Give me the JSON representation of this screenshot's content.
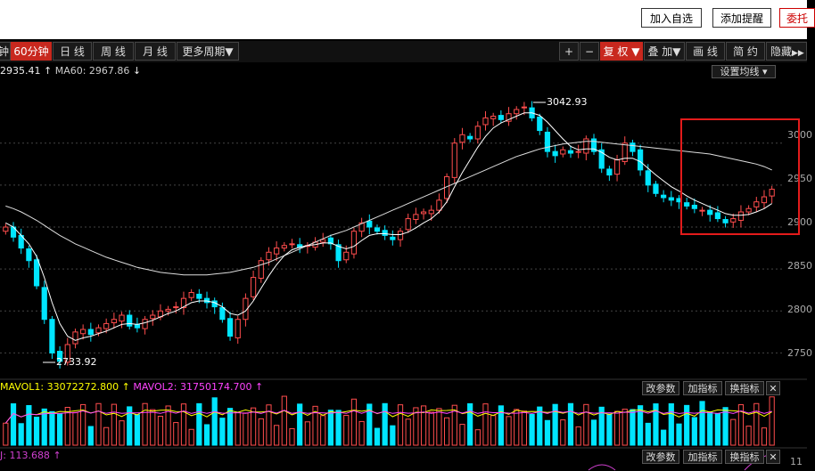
{
  "top_buttons": {
    "add_watch": "加入自选",
    "add_alert": "添加提醒",
    "entrust": "委托"
  },
  "toolbar": {
    "left_cut": "钟",
    "period_60": "60分钟",
    "day": "日 线",
    "week": "周 线",
    "month": "月 线",
    "more": "更多周期▼",
    "plus": "+",
    "minus": "−",
    "fuquan": "复 权 ▼",
    "overlay": "叠 加▼",
    "draw": "画 线",
    "simple": "简 约",
    "hide": "隐藏"
  },
  "info": {
    "ma_cut": "2935.41",
    "ma60_label": "MA60: 2967.86",
    "set_ma": "设置均线 ▾"
  },
  "volume": {
    "mavol1": "MAVOL1: 33072272.800",
    "mavol2": "MAVOL2: 31750174.700",
    "btn_params": "改参数",
    "btn_add": "加指标",
    "btn_switch": "换指标",
    "btn_close": "✕"
  },
  "kdj": {
    "label": "J: 113.688",
    "btn_params": "改参数",
    "btn_add": "加指标",
    "btn_switch": "换指标",
    "btn_close": "✕",
    "right_cut": "11"
  },
  "annotations": {
    "high": "3042.93",
    "low": "2733.92"
  },
  "colors": {
    "up": "#ff4d4d",
    "down": "#00e5ff",
    "ma_short": "#ffffff",
    "ma60": "#dddddd",
    "highlight": "#e31b1b",
    "mavol1": "#ffff00",
    "mavol2": "#ff44ff"
  },
  "chart_data": {
    "type": "line",
    "title": "",
    "ylabel": "",
    "y_ticks": [
      "3000",
      "2950",
      "2900",
      "2850",
      "2800",
      "2750"
    ],
    "ylim": [
      2725,
      3075
    ],
    "close_series": {
      "name": "",
      "values": [
        2900,
        2888,
        2875,
        2860,
        2830,
        2790,
        2750,
        2740,
        2760,
        2775,
        2778,
        2772,
        2780,
        2785,
        2790,
        2795,
        2782,
        2780,
        2790,
        2795,
        2800,
        2802,
        2805,
        2815,
        2822,
        2815,
        2810,
        2805,
        2790,
        2770,
        2790,
        2815,
        2840,
        2860,
        2870,
        2875,
        2878,
        2880,
        2876,
        2878,
        2882,
        2885,
        2880,
        2860,
        2870,
        2895,
        2905,
        2900,
        2895,
        2890,
        2885,
        2895,
        2910,
        2915,
        2918,
        2920,
        2932,
        2960,
        3000,
        3010,
        3005,
        3020,
        3030,
        3032,
        3028,
        3035,
        3040,
        3043,
        3030,
        3015,
        2990,
        2985,
        2992,
        2988,
        2990,
        3005,
        2990,
        2970,
        2962,
        2980,
        3000,
        2990,
        2968,
        2950,
        2940,
        2935,
        2932,
        2930,
        2925,
        2922,
        2920,
        2915,
        2910,
        2905,
        2910,
        2918,
        2922,
        2930,
        2936,
        2945
      ]
    },
    "ma_short": {
      "name": "",
      "values": [
        2905,
        2900,
        2890,
        2880,
        2865,
        2840,
        2810,
        2785,
        2770,
        2765,
        2768,
        2770,
        2773,
        2776,
        2780,
        2784,
        2785,
        2784,
        2786,
        2789,
        2793,
        2797,
        2800,
        2805,
        2810,
        2812,
        2812,
        2810,
        2805,
        2797,
        2795,
        2800,
        2812,
        2827,
        2842,
        2855,
        2866,
        2873,
        2876,
        2878,
        2879,
        2881,
        2881,
        2877,
        2874,
        2877,
        2884,
        2890,
        2892,
        2892,
        2891,
        2891,
        2894,
        2899,
        2905,
        2910,
        2918,
        2930,
        2948,
        2965,
        2980,
        2995,
        3008,
        3018,
        3024,
        3028,
        3032,
        3036,
        3036,
        3033,
        3025,
        3015,
        3005,
        2996,
        2992,
        2993,
        2993,
        2989,
        2983,
        2980,
        2982,
        2982,
        2978,
        2970,
        2962,
        2955,
        2948,
        2943,
        2937,
        2932,
        2928,
        2924,
        2920,
        2916,
        2914,
        2914,
        2915,
        2918,
        2922,
        2928
      ]
    },
    "ma60": {
      "name": "MA60",
      "values": [
        2925,
        2922,
        2918,
        2913,
        2908,
        2902,
        2896,
        2890,
        2885,
        2880,
        2876,
        2872,
        2868,
        2864,
        2861,
        2858,
        2855,
        2852,
        2850,
        2848,
        2846,
        2845,
        2844,
        2843,
        2843,
        2843,
        2843,
        2844,
        2845,
        2846,
        2848,
        2850,
        2852,
        2855,
        2858,
        2862,
        2866,
        2870,
        2874,
        2878,
        2882,
        2886,
        2890,
        2893,
        2896,
        2900,
        2904,
        2908,
        2912,
        2916,
        2920,
        2924,
        2928,
        2932,
        2936,
        2940,
        2944,
        2948,
        2952,
        2956,
        2960,
        2964,
        2968,
        2972,
        2976,
        2980,
        2984,
        2987,
        2990,
        2993,
        2995,
        2997,
        2999,
        3000,
        3001,
        3002,
        3002,
        3001,
        3000,
        2999,
        2998,
        2997,
        2996,
        2995,
        2994,
        2993,
        2992,
        2991,
        2990,
        2989,
        2988,
        2987,
        2985,
        2983,
        2981,
        2979,
        2977,
        2975,
        2972,
        2968
      ]
    }
  }
}
